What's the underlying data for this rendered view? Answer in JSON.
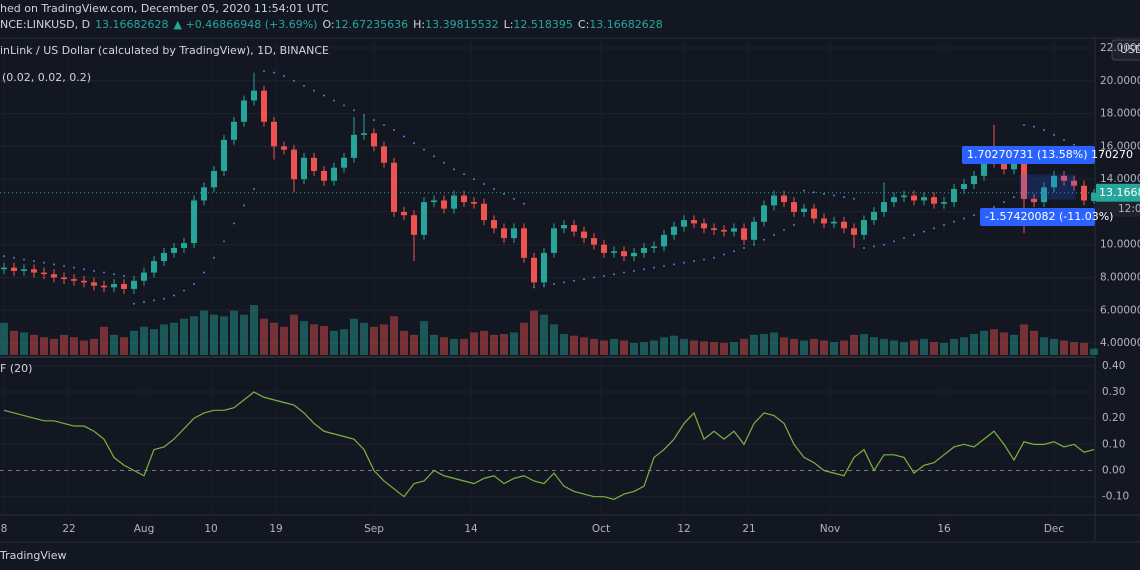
{
  "chart_data": {
    "type": "candlestick",
    "published": "hed on TradingView.com, December 05, 2020 11:54:01 UTC",
    "symbol": "NCE:LINKUSD, D",
    "change": "▲ +0.46866948 (+3.69%)",
    "ohlc_labels": [
      "O:",
      "H:",
      "L:",
      "C:"
    ],
    "title": "inLink / US Dollar (calculated by TradingView), 1D, BINANCE",
    "sar_label": "(0.02, 0.02, 0.2)",
    "cmf_label": "F (20)",
    "currency": "USD",
    "price_label": "13.16682",
    "countdown": "12:0",
    "annotations": [
      "1.70270731 (13.58%) 170270",
      "-1.57420082 (-11.03%)"
    ],
    "footer": "TradingView",
    "up_color": "#26a69a",
    "down_color": "#ef5350",
    "sar_color": "#4f7bd9",
    "cmf_color": "#7cb342",
    "open": [
      8.5,
      8.6,
      8.4,
      8.5,
      8.3,
      8.2,
      8.0,
      7.9,
      7.8,
      7.7,
      7.5,
      7.4,
      7.6,
      7.3,
      7.8,
      8.3,
      9.0,
      9.5,
      9.8,
      10.1,
      12.7,
      13.5,
      14.5,
      16.4,
      17.5,
      18.8,
      19.4,
      17.5,
      16.0,
      15.8,
      14.0,
      15.3,
      14.5,
      13.9,
      14.7,
      15.3,
      16.7,
      16.8,
      16.0,
      15.0,
      12.0,
      11.8,
      10.6,
      12.6,
      12.7,
      12.2,
      13.0,
      12.6,
      12.5,
      11.5,
      11.0,
      10.4,
      11.0,
      9.2,
      7.7,
      9.5,
      11.0,
      11.2,
      10.8,
      10.4,
      10.0,
      9.5,
      9.6,
      9.3,
      9.5,
      9.8,
      9.9,
      10.6,
      11.1,
      11.5,
      11.3,
      11.0,
      10.9,
      10.8,
      11.0,
      10.3,
      11.4,
      12.4,
      13.0,
      12.6,
      12.0,
      12.2,
      11.6,
      11.3,
      11.4,
      11.0,
      10.6,
      11.5,
      12.0,
      12.6,
      12.9,
      13.0,
      12.7,
      12.9,
      12.5,
      12.6,
      13.4,
      13.7,
      14.2,
      15.2,
      15.0,
      14.6,
      15.2,
      12.8,
      12.6,
      13.5,
      14.2,
      13.9,
      13.6,
      12.67235636
    ],
    "high": [
      8.9,
      8.9,
      8.8,
      8.8,
      8.6,
      8.5,
      8.3,
      8.2,
      8.1,
      8.0,
      7.8,
      7.9,
      7.9,
      8.1,
      8.6,
      9.3,
      9.8,
      10.1,
      10.4,
      13.0,
      13.8,
      14.8,
      16.7,
      17.8,
      19.1,
      20.5,
      19.7,
      17.8,
      16.3,
      16.1,
      15.6,
      15.6,
      14.8,
      15.0,
      15.6,
      17.8,
      17.9,
      17.1,
      16.3,
      15.3,
      12.3,
      12.1,
      12.9,
      13.0,
      13.0,
      13.3,
      13.3,
      12.9,
      12.8,
      11.8,
      11.3,
      11.3,
      11.3,
      9.5,
      9.8,
      11.3,
      11.5,
      11.5,
      11.1,
      10.7,
      10.3,
      9.9,
      9.9,
      9.8,
      10.1,
      10.2,
      10.9,
      11.4,
      11.8,
      11.8,
      11.6,
      11.3,
      11.2,
      11.3,
      11.3,
      11.7,
      12.7,
      13.3,
      13.3,
      12.9,
      12.5,
      12.5,
      11.9,
      11.7,
      11.7,
      11.3,
      11.8,
      12.3,
      13.8,
      13.2,
      13.3,
      13.3,
      13.2,
      13.2,
      12.9,
      13.7,
      14.0,
      14.5,
      15.5,
      17.3,
      15.3,
      15.5,
      15.5,
      13.1,
      13.8,
      14.5,
      14.5,
      14.2,
      13.9,
      13.39815532
    ],
    "low": [
      8.2,
      8.1,
      8.1,
      8.0,
      7.9,
      7.7,
      7.6,
      7.5,
      7.4,
      7.2,
      7.1,
      7.1,
      7.0,
      7.0,
      7.5,
      8.0,
      8.7,
      9.2,
      9.5,
      9.8,
      12.4,
      13.2,
      14.2,
      16.1,
      17.2,
      18.5,
      17.2,
      15.2,
      15.5,
      13.2,
      13.7,
      14.2,
      13.6,
      13.6,
      14.4,
      15.0,
      16.4,
      15.7,
      14.7,
      11.7,
      11.5,
      9.0,
      10.3,
      12.3,
      11.9,
      11.9,
      12.3,
      12.2,
      11.2,
      10.7,
      10.1,
      10.1,
      8.9,
      7.4,
      7.4,
      9.2,
      10.7,
      10.5,
      10.1,
      9.7,
      9.2,
      9.2,
      9.0,
      9.0,
      9.2,
      9.5,
      9.6,
      10.3,
      10.8,
      11.0,
      10.7,
      10.6,
      10.5,
      10.5,
      10.0,
      10.0,
      11.1,
      12.1,
      12.3,
      11.7,
      11.7,
      11.3,
      11.0,
      11.0,
      10.7,
      9.8,
      10.3,
      11.2,
      11.7,
      12.3,
      12.6,
      12.4,
      12.4,
      12.2,
      12.2,
      12.3,
      13.1,
      13.4,
      13.9,
      14.7,
      14.3,
      14.3,
      10.7,
      12.3,
      12.3,
      13.2,
      13.6,
      13.3,
      12.4,
      12.518395
    ],
    "close": [
      8.6,
      8.4,
      8.5,
      8.3,
      8.2,
      8.0,
      7.9,
      7.8,
      7.7,
      7.5,
      7.4,
      7.6,
      7.3,
      7.8,
      8.3,
      9.0,
      9.5,
      9.8,
      10.1,
      12.7,
      13.5,
      14.5,
      16.4,
      17.5,
      18.8,
      19.4,
      17.5,
      16.0,
      15.8,
      14.0,
      15.3,
      14.5,
      13.9,
      14.7,
      15.3,
      16.7,
      16.8,
      16.0,
      15.0,
      12.0,
      11.8,
      10.6,
      12.6,
      12.7,
      12.2,
      13.0,
      12.6,
      12.5,
      11.5,
      11.0,
      10.4,
      11.0,
      9.2,
      7.7,
      9.5,
      11.0,
      11.2,
      10.8,
      10.4,
      10.0,
      9.5,
      9.6,
      9.3,
      9.5,
      9.8,
      9.9,
      10.6,
      11.1,
      11.5,
      11.3,
      11.0,
      10.9,
      10.8,
      11.0,
      10.3,
      11.4,
      12.4,
      13.0,
      12.6,
      12.0,
      12.2,
      11.6,
      11.3,
      11.4,
      11.0,
      10.6,
      11.5,
      12.0,
      12.6,
      12.9,
      13.0,
      12.7,
      12.9,
      12.5,
      12.6,
      13.4,
      13.7,
      14.2,
      15.2,
      15.0,
      14.6,
      15.2,
      12.8,
      12.6,
      13.5,
      14.2,
      13.9,
      13.6,
      12.7,
      13.16682628
    ],
    "volume": [
      40,
      30,
      28,
      25,
      22,
      20,
      25,
      22,
      18,
      20,
      35,
      25,
      22,
      30,
      35,
      32,
      38,
      40,
      45,
      48,
      55,
      50,
      48,
      55,
      50,
      62,
      45,
      40,
      35,
      50,
      42,
      38,
      36,
      30,
      32,
      45,
      40,
      35,
      38,
      48,
      30,
      25,
      42,
      25,
      22,
      20,
      20,
      28,
      30,
      25,
      26,
      28,
      40,
      55,
      50,
      38,
      26,
      24,
      22,
      20,
      18,
      20,
      18,
      15,
      16,
      18,
      22,
      24,
      20,
      18,
      17,
      16,
      15,
      16,
      20,
      25,
      26,
      28,
      22,
      20,
      18,
      20,
      18,
      16,
      18,
      25,
      26,
      22,
      20,
      18,
      16,
      18,
      20,
      16,
      15,
      20,
      22,
      26,
      30,
      32,
      28,
      25,
      38,
      30,
      22,
      20,
      18,
      16,
      15,
      8
    ],
    "sar": [
      9.3,
      9.2,
      9.1,
      9.0,
      8.9,
      8.8,
      8.7,
      8.6,
      8.5,
      8.4,
      8.3,
      8.2,
      8.1,
      6.4,
      6.5,
      6.6,
      6.7,
      6.9,
      7.2,
      7.6,
      8.3,
      9.2,
      10.2,
      11.3,
      12.4,
      13.4,
      20.6,
      20.5,
      20.3,
      20.0,
      19.7,
      19.4,
      19.1,
      18.8,
      18.5,
      18.2,
      17.9,
      17.6,
      17.3,
      17.0,
      16.6,
      16.2,
      15.8,
      15.4,
      15.0,
      14.6,
      14.3,
      14.0,
      13.7,
      13.4,
      13.1,
      12.8,
      12.5,
      7.4,
      7.5,
      7.6,
      7.7,
      7.8,
      7.9,
      8.0,
      8.1,
      8.2,
      8.3,
      8.4,
      8.5,
      8.6,
      8.7,
      8.8,
      8.9,
      9.0,
      9.1,
      9.2,
      9.4,
      9.6,
      9.8,
      10.0,
      10.3,
      10.6,
      10.9,
      11.2,
      13.3,
      13.2,
      13.1,
      13.0,
      12.9,
      12.8,
      9.8,
      9.9,
      10.0,
      10.2,
      10.4,
      10.6,
      10.8,
      11.0,
      11.2,
      11.4,
      11.6,
      11.8,
      12.0,
      12.3,
      12.6,
      12.9,
      17.3,
      17.2,
      17.0,
      16.7,
      16.4,
      16.1,
      15.8,
      15.5
    ],
    "cmf": [
      0.23,
      0.22,
      0.21,
      0.2,
      0.19,
      0.19,
      0.18,
      0.17,
      0.17,
      0.15,
      0.12,
      0.05,
      0.02,
      0.0,
      -0.02,
      0.08,
      0.09,
      0.12,
      0.16,
      0.2,
      0.22,
      0.23,
      0.23,
      0.24,
      0.27,
      0.3,
      0.28,
      0.27,
      0.26,
      0.25,
      0.22,
      0.18,
      0.15,
      0.14,
      0.13,
      0.12,
      0.08,
      0.0,
      -0.04,
      -0.07,
      -0.1,
      -0.05,
      -0.04,
      0.0,
      -0.02,
      -0.03,
      -0.04,
      -0.05,
      -0.03,
      -0.02,
      -0.05,
      -0.03,
      -0.02,
      -0.04,
      -0.05,
      -0.01,
      -0.06,
      -0.08,
      -0.09,
      -0.1,
      -0.1,
      -0.11,
      -0.09,
      -0.08,
      -0.06,
      0.05,
      0.08,
      0.12,
      0.18,
      0.22,
      0.12,
      0.15,
      0.12,
      0.15,
      0.1,
      0.18,
      0.22,
      0.21,
      0.18,
      0.1,
      0.05,
      0.03,
      0.0,
      -0.01,
      -0.02,
      0.05,
      0.08,
      0.0,
      0.06,
      0.06,
      0.05,
      -0.01,
      0.02,
      0.03,
      0.06,
      0.09,
      0.1,
      0.09,
      0.12,
      0.15,
      0.1,
      0.04,
      0.11,
      0.1,
      0.1,
      0.11,
      0.09,
      0.1,
      0.07,
      0.08
    ],
    "ylim": [
      3.27,
      22.49
    ],
    "yticks": [
      {
        "value": 22,
        "label": "22.000000"
      },
      {
        "value": 20,
        "label": "20.000000"
      },
      {
        "value": 18,
        "label": "18.000000"
      },
      {
        "value": 16,
        "label": "16.000000"
      },
      {
        "value": 14,
        "label": "14.000000"
      },
      {
        "value": 12,
        "label": "12.000000"
      },
      {
        "value": 10,
        "label": "10.000000"
      },
      {
        "value": 8,
        "label": "8.000000"
      },
      {
        "value": 6,
        "label": "6.000000"
      },
      {
        "value": 4,
        "label": "4.000000"
      }
    ],
    "cmf_lim": [
      -0.17,
      0.43
    ],
    "cmf_ticks": [
      {
        "value": 0.4,
        "label": "0.40"
      },
      {
        "value": 0.3,
        "label": "0.30"
      },
      {
        "value": 0.2,
        "label": "0.20"
      },
      {
        "value": 0.1,
        "label": "0.10"
      },
      {
        "value": 0,
        "label": "0.00"
      },
      {
        "value": -0.1,
        "label": "-0.10"
      }
    ],
    "xticks": [
      {
        "value": 0,
        "label": "8"
      },
      {
        "value": 6.5,
        "label": "22"
      },
      {
        "value": 14,
        "label": "Aug"
      },
      {
        "value": 20.7,
        "label": "10"
      },
      {
        "value": 27.2,
        "label": "19"
      },
      {
        "value": 37,
        "label": "Sep"
      },
      {
        "value": 46.7,
        "label": "14"
      },
      {
        "value": 59.7,
        "label": "Oct"
      },
      {
        "value": 68,
        "label": "12"
      },
      {
        "value": 74.5,
        "label": "21"
      },
      {
        "value": 82.6,
        "label": "Nov"
      },
      {
        "value": 94,
        "label": "16"
      },
      {
        "value": 105,
        "label": "Dec"
      }
    ]
  }
}
